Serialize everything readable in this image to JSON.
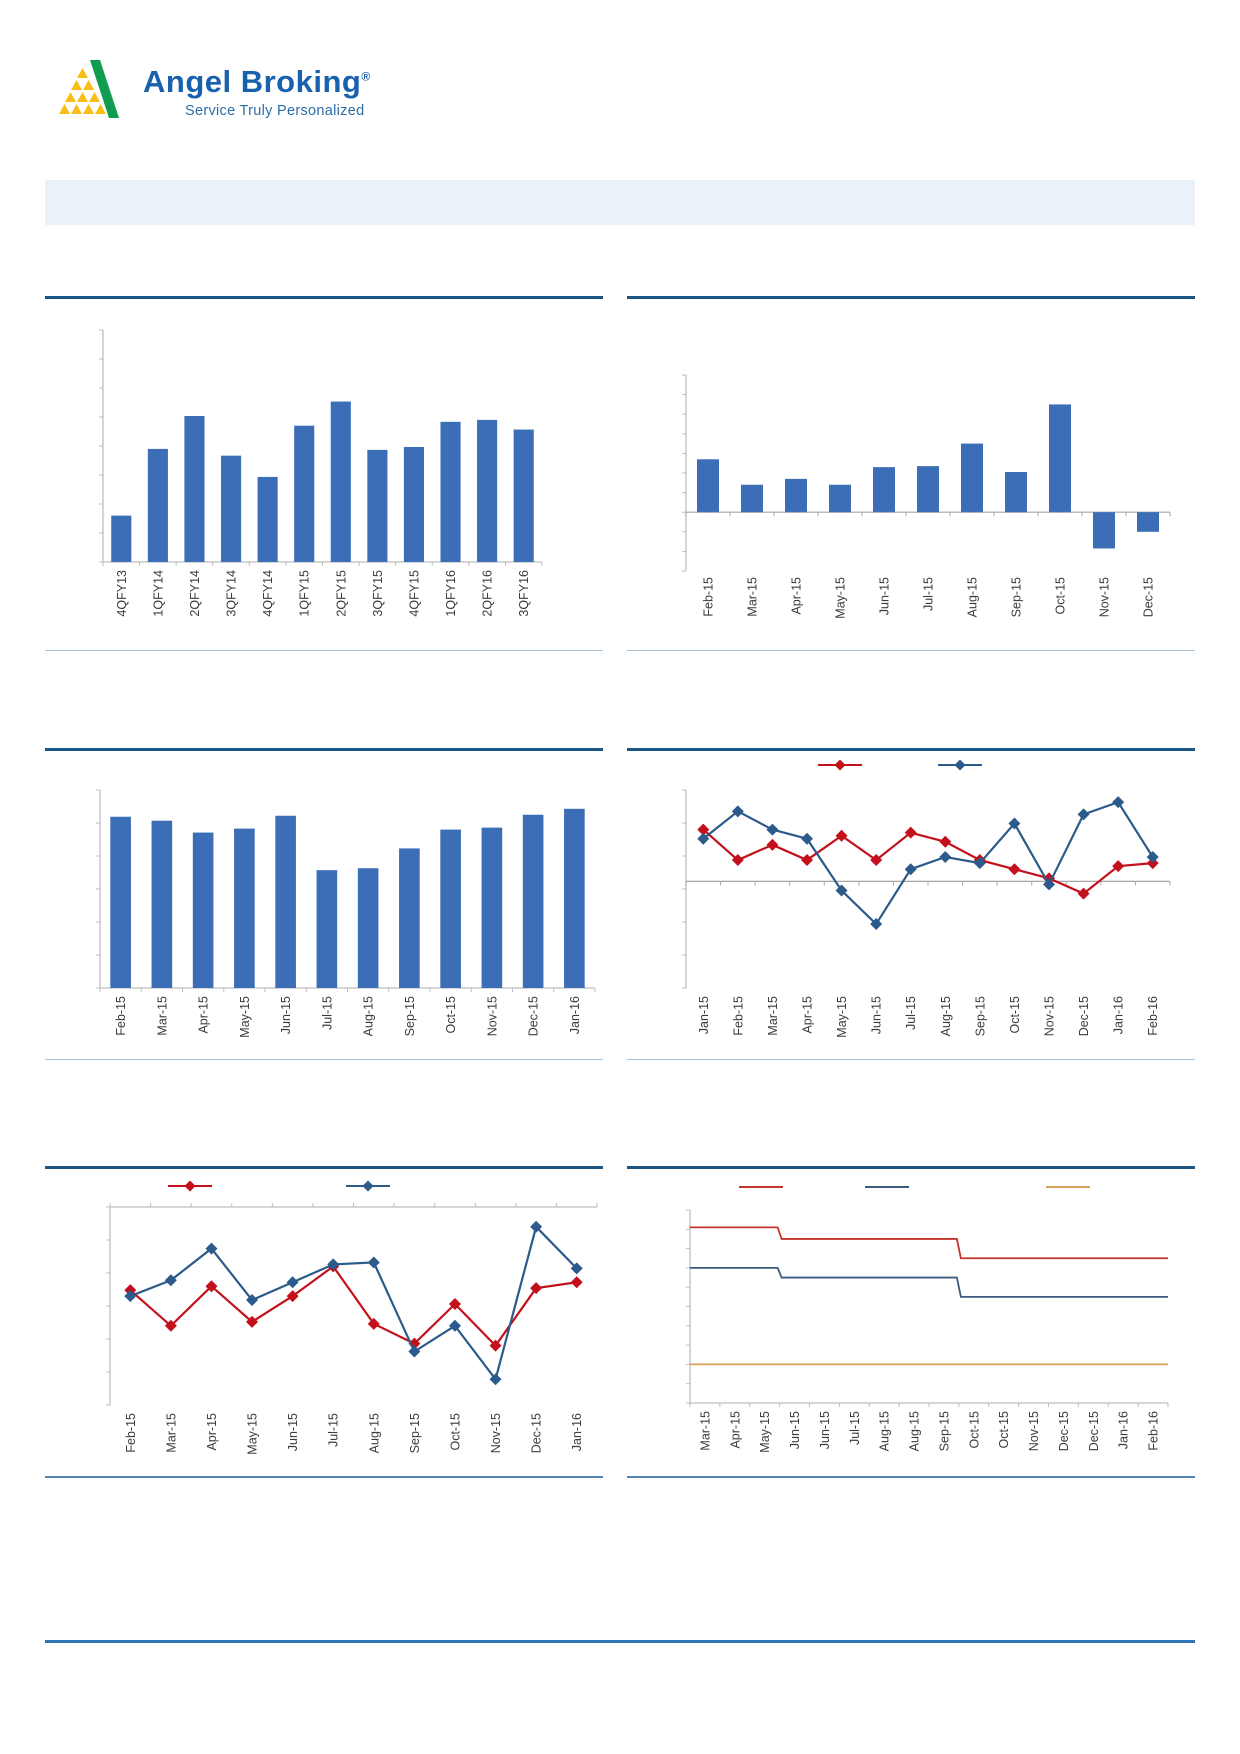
{
  "logo": {
    "brand": "Angel Broking",
    "registered_mark": "®",
    "tagline": "Service Truly Personalized",
    "colors": {
      "brand_text": "#1761AE",
      "tagline_text": "#2C6EA8",
      "swoosh_green": "#129C4F",
      "triangle_yellow": "#F9BE15"
    }
  },
  "header_band": {
    "color": "#EAF1F8"
  },
  "palette": {
    "bar_blue": "#3B6EB6",
    "line_red": "#C3101B",
    "line_dark_blue": "#2B5A8B",
    "line_orange": "#D9A05B",
    "title_rule": "#1B5584",
    "section_divider": "#A9C0D4",
    "bottom_divider": "#5585B5",
    "footer_rule": "#2E74B5",
    "axis_grey": "#BFBFBF",
    "zero_line_grey": "#A6A6A6",
    "label_text": "#3C3C3C"
  },
  "chart_data": [
    {
      "id": "quarterly-bar-chart",
      "type": "bar",
      "title": "",
      "categories": [
        "4QFY13",
        "1QFY14",
        "2QFY14",
        "3QFY14",
        "4QFY14",
        "1QFY15",
        "2QFY15",
        "3QFY15",
        "4QFY15",
        "1QFY16",
        "2QFY16",
        "3QFY16"
      ],
      "values": [
        48,
        117,
        151,
        110,
        88,
        141,
        166,
        116,
        119,
        145,
        147,
        137
      ],
      "ylim": [
        0,
        240
      ],
      "y_tick_labels": "none",
      "bar_color": "#3B6EB6",
      "grid": false
    },
    {
      "id": "monthly-bar-chart-pos-neg",
      "type": "bar",
      "title": "",
      "categories": [
        "Feb-15",
        "Mar-15",
        "Apr-15",
        "May-15",
        "Jun-15",
        "Jul-15",
        "Aug-15",
        "Sep-15",
        "Oct-15",
        "Nov-15",
        "Dec-15"
      ],
      "values": [
        54,
        28,
        34,
        28,
        46,
        47,
        70,
        41,
        110,
        -37,
        -20
      ],
      "ylim": [
        -60,
        140
      ],
      "y_tick_labels": "none",
      "bar_color": "#3B6EB6",
      "grid": false
    },
    {
      "id": "monthly-bar-chart",
      "type": "bar",
      "title": "",
      "categories": [
        "Feb-15",
        "Mar-15",
        "Apr-15",
        "May-15",
        "Jun-15",
        "Jul-15",
        "Aug-15",
        "Sep-15",
        "Oct-15",
        "Nov-15",
        "Dec-15",
        "Jan-16"
      ],
      "values": [
        173,
        169,
        157,
        161,
        174,
        119,
        121,
        141,
        160,
        162,
        175,
        181
      ],
      "ylim": [
        0,
        200
      ],
      "y_tick_labels": "none",
      "bar_color": "#3B6EB6",
      "grid": false
    },
    {
      "id": "two-series-line-chart-zero-axis",
      "type": "line",
      "title": "",
      "categories": [
        "Jan-15",
        "Feb-15",
        "Mar-15",
        "Apr-15",
        "May-15",
        "Jun-15",
        "Jul-15",
        "Aug-15",
        "Sep-15",
        "Oct-15",
        "Nov-15",
        "Dec-15",
        "Jan-16",
        "Feb-16"
      ],
      "series": [
        {
          "name": "red-series",
          "color": "#C3101B",
          "marker": "diamond",
          "values": [
            1.7,
            0.7,
            1.2,
            0.7,
            1.5,
            0.7,
            1.6,
            1.3,
            0.7,
            0.4,
            0.1,
            -0.4,
            0.5,
            0.6
          ]
        },
        {
          "name": "dark-blue-series",
          "color": "#2B5A8B",
          "marker": "diamond",
          "values": [
            1.4,
            2.3,
            1.7,
            1.4,
            -0.3,
            -1.4,
            0.4,
            0.8,
            0.6,
            1.9,
            -0.1,
            2.2,
            2.6,
            0.8
          ]
        }
      ],
      "ylim": [
        -3.5,
        3
      ],
      "y_tick_labels": "none",
      "legend_position": "top",
      "legend_text_visible": false,
      "grid": false
    },
    {
      "id": "two-series-line-chart",
      "type": "line",
      "title": "",
      "categories": [
        "Feb-15",
        "Mar-15",
        "Apr-15",
        "May-15",
        "Jun-15",
        "Jul-15",
        "Aug-15",
        "Sep-15",
        "Oct-15",
        "Nov-15",
        "Dec-15",
        "Jan-16"
      ],
      "series": [
        {
          "name": "red-series",
          "color": "#C3101B",
          "marker": "diamond",
          "values": [
            5.8,
            4.0,
            6.0,
            4.2,
            5.5,
            7.0,
            4.1,
            3.1,
            5.1,
            3.0,
            5.9,
            6.2
          ]
        },
        {
          "name": "dark-blue-series",
          "color": "#2B5A8B",
          "marker": "diamond",
          "values": [
            5.5,
            6.3,
            7.9,
            5.3,
            6.2,
            7.1,
            7.2,
            2.7,
            4.0,
            1.3,
            9.0,
            6.9
          ]
        }
      ],
      "ylim": [
        0,
        10
      ],
      "y_tick_labels": "none",
      "legend_position": "top",
      "legend_text_visible": false,
      "grid": false
    },
    {
      "id": "three-series-step-chart",
      "type": "step",
      "title": "",
      "categories": [
        "Mar-15",
        "Apr-15",
        "May-15",
        "Jun-15",
        "Jun-15",
        "Jul-15",
        "Aug-15",
        "Aug-15",
        "Sep-15",
        "Oct-15",
        "Oct-15",
        "Nov-15",
        "Dec-15",
        "Dec-15",
        "Jan-16",
        "Feb-16"
      ],
      "series": [
        {
          "name": "red-series",
          "color": "#C3342B",
          "marker": "none",
          "values": [
            9.1,
            9.1,
            9.1,
            8.5,
            8.5,
            8.5,
            8.5,
            8.5,
            8.5,
            7.5,
            7.5,
            7.5,
            7.5,
            7.5,
            7.5,
            7.5
          ]
        },
        {
          "name": "dark-blue-series",
          "color": "#3D5A80",
          "marker": "none",
          "values": [
            7.0,
            7.0,
            7.0,
            6.5,
            6.5,
            6.5,
            6.5,
            6.5,
            6.5,
            5.5,
            5.5,
            5.5,
            5.5,
            5.5,
            5.5,
            5.5
          ]
        },
        {
          "name": "orange-series",
          "color": "#D9A05B",
          "marker": "none",
          "values": [
            2.0,
            2.0,
            2.0,
            2.0,
            2.0,
            2.0,
            2.0,
            2.0,
            2.0,
            2.0,
            2.0,
            2.0,
            2.0,
            2.0,
            2.0,
            2.0
          ]
        }
      ],
      "ylim": [
        0,
        10
      ],
      "y_tick_labels": "none",
      "legend_position": "top",
      "legend_text_visible": false,
      "grid": false
    }
  ]
}
